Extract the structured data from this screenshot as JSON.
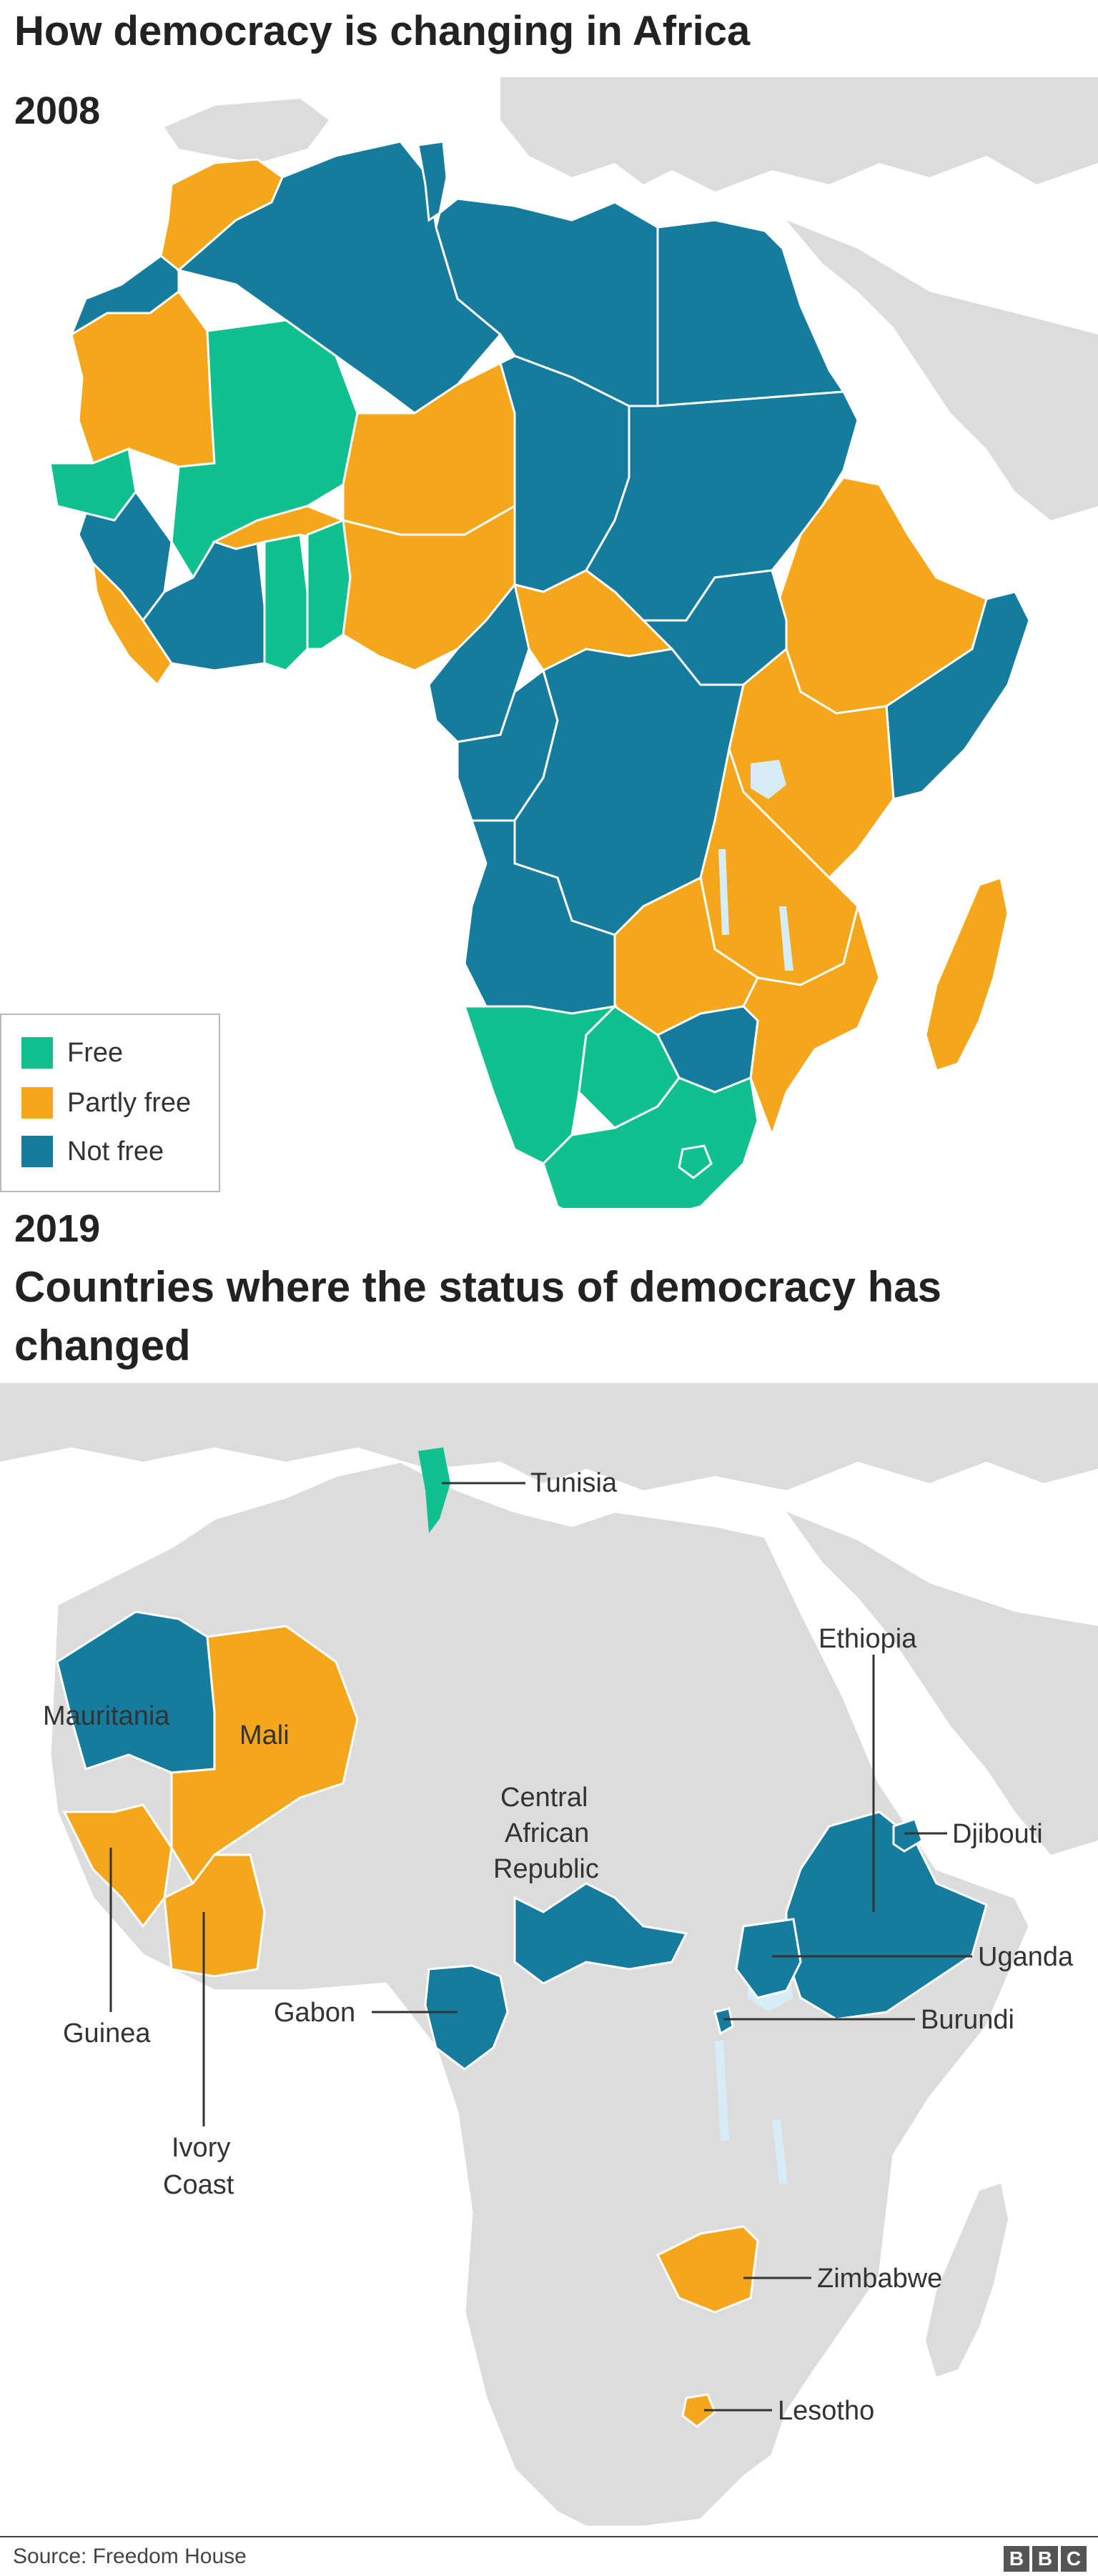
{
  "title": "How democracy is changing in Africa",
  "map_2008": {
    "year": "2008",
    "legend": [
      {
        "label": "Free",
        "color": "#10c08e"
      },
      {
        "label": "Partly free",
        "color": "#f5a71c"
      },
      {
        "label": "Not free",
        "color": "#167c9e"
      }
    ]
  },
  "map_2019": {
    "year": "2019",
    "subtitle": "Countries where the status of democracy has changed",
    "countries": [
      {
        "name": "Tunisia",
        "status": "Free"
      },
      {
        "name": "Mauritania",
        "status": "Not free"
      },
      {
        "name": "Mali",
        "status": "Partly free"
      },
      {
        "name": "Guinea",
        "status": "Partly free"
      },
      {
        "name": "Ivory Coast",
        "status": "Partly free"
      },
      {
        "name": "Central African Republic",
        "status": "Not free"
      },
      {
        "name": "Ethiopia",
        "status": "Not free"
      },
      {
        "name": "Djibouti",
        "status": "Not free"
      },
      {
        "name": "Gabon",
        "status": "Not free"
      },
      {
        "name": "Uganda",
        "status": "Not free"
      },
      {
        "name": "Burundi",
        "status": "Not free"
      },
      {
        "name": "Zimbabwe",
        "status": "Partly free"
      },
      {
        "name": "Lesotho",
        "status": "Partly free"
      }
    ],
    "label_text": {
      "ivory_coast": [
        "Ivory",
        "Coast"
      ],
      "car": [
        "Central",
        "African",
        "Republic"
      ]
    }
  },
  "colors": {
    "free": "#10c08e",
    "partly_free": "#f5a71c",
    "not_free": "#167c9e",
    "land": "#dcdcdc",
    "water": "#ffffff",
    "lake": "#d6ecf6",
    "border": "#ffffff"
  },
  "source": "Source: Freedom House",
  "logo": [
    "B",
    "B",
    "C"
  ]
}
